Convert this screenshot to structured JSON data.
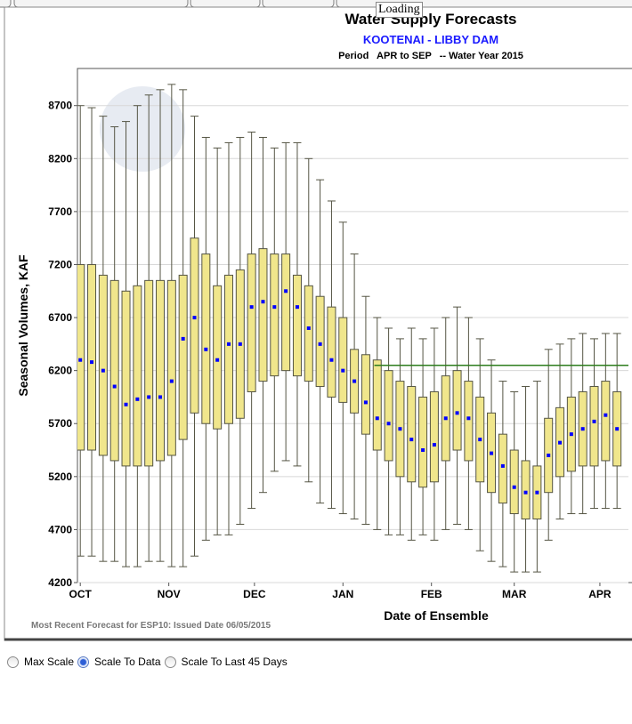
{
  "loading": "Loading",
  "controls": {
    "options": [
      "Max Scale",
      "Scale To Data",
      "Scale To Last 45 Days"
    ],
    "selected": 1
  },
  "chart_data": {
    "type": "box",
    "title": "Water Supply Forecasts",
    "subtitle": "KOOTENAI - LIBBY DAM",
    "period": "Period   APR to SEP   -- Water Year 2015",
    "ylabel": "Seasonal Volumes, KAF",
    "xlabel": "Date of Ensemble",
    "note": "Most Recent Forecast for ESP10: Issued Date 06/05/2015",
    "box_color": "#f0e68c",
    "whisker_color": "#555544",
    "median_color": "#0000ff",
    "ylim": [
      4200,
      9050
    ],
    "yticks": [
      4200,
      4700,
      5200,
      5700,
      6200,
      6700,
      7200,
      7700,
      8200,
      8700
    ],
    "xlim": [
      -1,
      192
    ],
    "xticks": [
      {
        "value": 0,
        "label": "OCT"
      },
      {
        "value": 31,
        "label": "NOV"
      },
      {
        "value": 61,
        "label": "DEC"
      },
      {
        "value": 92,
        "label": "JAN"
      },
      {
        "value": 123,
        "label": "FEB"
      },
      {
        "value": 152,
        "label": "MAR"
      },
      {
        "value": 182,
        "label": "APR"
      }
    ],
    "grid": true,
    "reference_line": {
      "value": 6250,
      "x_start": 103,
      "color": "#2e7d1e"
    },
    "x": [
      0,
      4,
      8,
      12,
      16,
      20,
      24,
      28,
      32,
      36,
      40,
      44,
      48,
      52,
      56,
      60,
      64,
      68,
      72,
      76,
      80,
      84,
      88,
      92,
      96,
      100,
      104,
      108,
      112,
      116,
      120,
      124,
      128,
      132,
      136,
      140,
      144,
      148,
      152,
      156,
      160,
      164,
      168,
      172,
      176,
      180,
      184,
      188
    ],
    "whisker_low": [
      4450,
      4450,
      4400,
      4400,
      4350,
      4350,
      4400,
      4400,
      4350,
      4350,
      4450,
      4600,
      4650,
      4650,
      4750,
      4900,
      5050,
      5250,
      5350,
      5300,
      5150,
      4950,
      4900,
      4850,
      4800,
      4750,
      4700,
      4650,
      4650,
      4600,
      4650,
      4600,
      4700,
      4750,
      4700,
      4500,
      4400,
      4350,
      4300,
      4300,
      4300,
      4600,
      4800,
      4850,
      4850,
      4900,
      4900,
      4900
    ],
    "q1": [
      5450,
      5450,
      5400,
      5350,
      5300,
      5300,
      5300,
      5350,
      5400,
      5550,
      5800,
      5700,
      5650,
      5700,
      5750,
      6000,
      6100,
      6150,
      6200,
      6150,
      6100,
      6050,
      5950,
      5900,
      5800,
      5600,
      5450,
      5350,
      5200,
      5150,
      5100,
      5150,
      5350,
      5450,
      5350,
      5150,
      5050,
      4950,
      4850,
      4800,
      4800,
      5050,
      5200,
      5250,
      5300,
      5300,
      5350,
      5300
    ],
    "median": [
      6300,
      6280,
      6200,
      6050,
      5880,
      5930,
      5950,
      5950,
      6100,
      6500,
      6700,
      6400,
      6300,
      6450,
      6450,
      6800,
      6850,
      6800,
      6950,
      6800,
      6600,
      6450,
      6300,
      6200,
      6100,
      5900,
      5750,
      5700,
      5650,
      5550,
      5450,
      5500,
      5750,
      5800,
      5750,
      5550,
      5420,
      5300,
      5100,
      5050,
      5050,
      5400,
      5520,
      5600,
      5650,
      5720,
      5780,
      5650
    ],
    "q3": [
      7200,
      7200,
      7100,
      7050,
      6950,
      7000,
      7050,
      7050,
      7050,
      7100,
      7450,
      7300,
      7000,
      7100,
      7150,
      7300,
      7350,
      7300,
      7300,
      7100,
      7000,
      6900,
      6800,
      6700,
      6400,
      6350,
      6300,
      6200,
      6100,
      6050,
      5950,
      6000,
      6150,
      6200,
      6100,
      5950,
      5800,
      5600,
      5450,
      5350,
      5300,
      5750,
      5850,
      5950,
      6000,
      6050,
      6100,
      6000
    ],
    "whisker_high": [
      8700,
      8680,
      8600,
      8500,
      8550,
      8700,
      8800,
      8850,
      8900,
      8850,
      8600,
      8400,
      8300,
      8350,
      8400,
      8450,
      8400,
      8300,
      8350,
      8350,
      8200,
      8000,
      7800,
      7600,
      7300,
      6900,
      6700,
      6600,
      6500,
      6600,
      6500,
      6600,
      6700,
      6800,
      6700,
      6500,
      6300,
      6100,
      6000,
      6050,
      6100,
      6400,
      6450,
      6500,
      6550,
      6500,
      6550,
      6550
    ]
  }
}
